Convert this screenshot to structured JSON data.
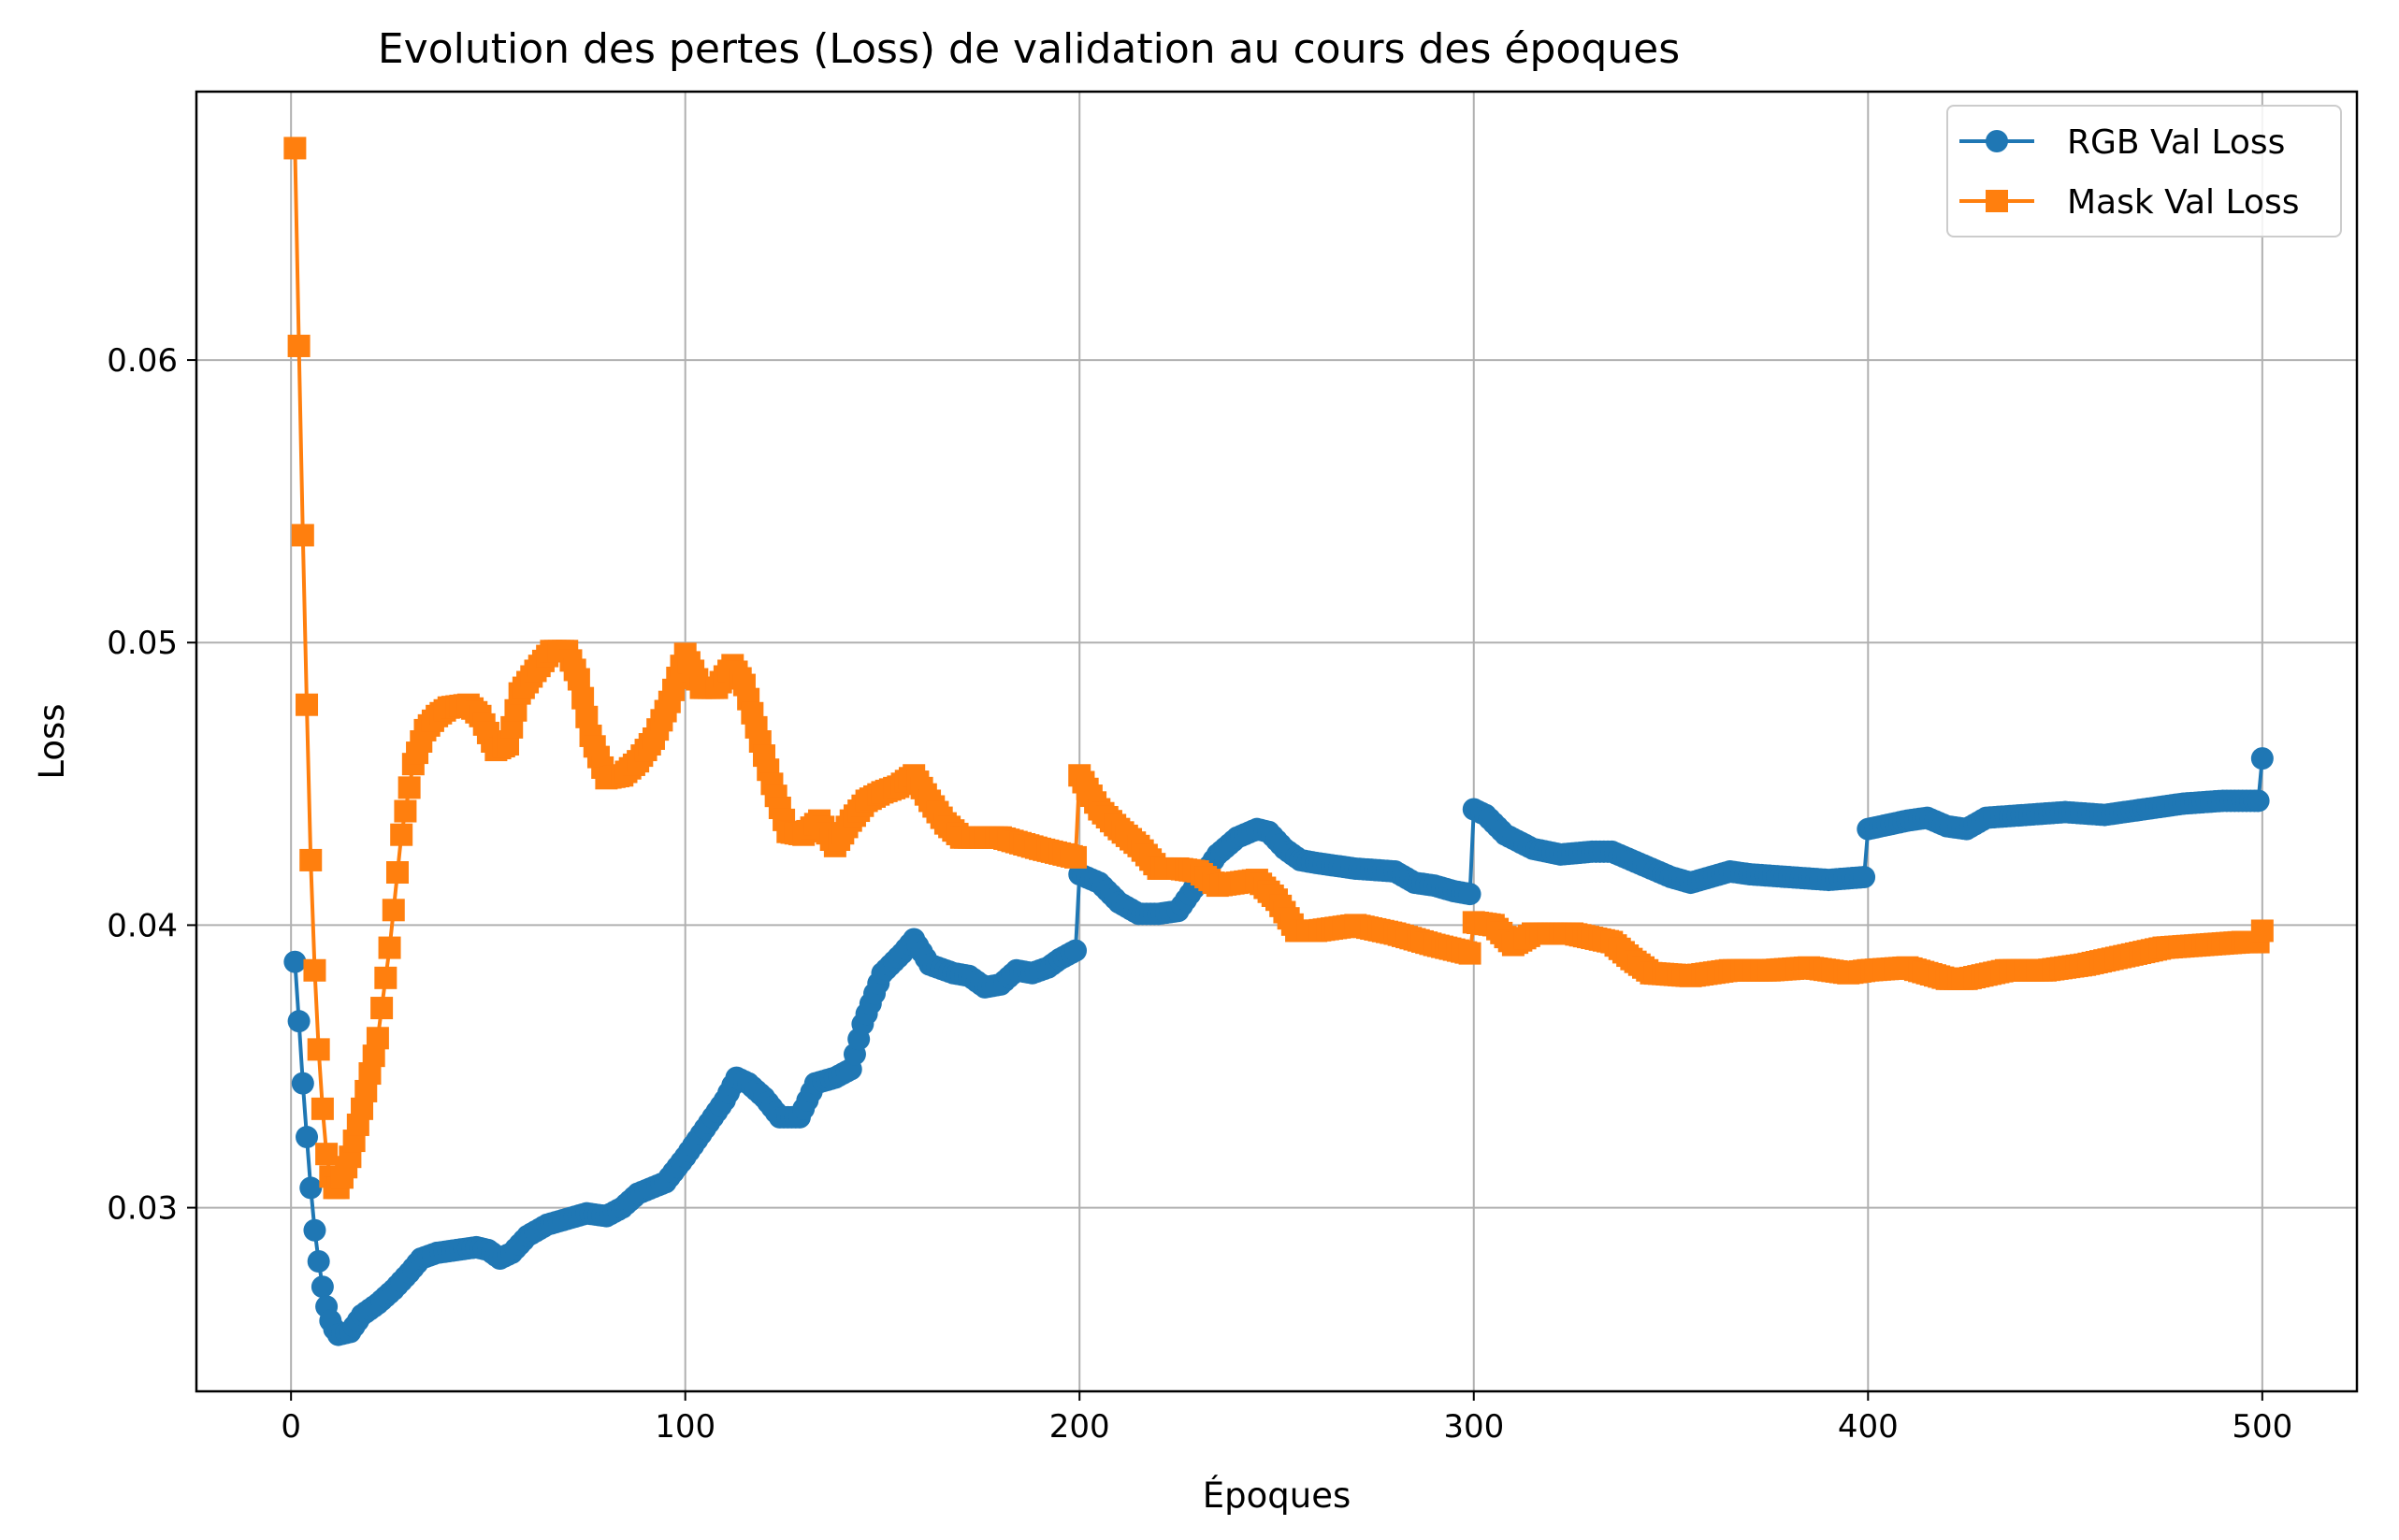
{
  "chart_data": {
    "type": "line",
    "title": "Evolution des pertes (Loss) de validation au cours des époques",
    "xlabel": "Époques",
    "ylabel": "Loss",
    "xlim": [
      -24,
      524
    ],
    "ylim": [
      0.0235,
      0.0695
    ],
    "xticks": [
      0,
      100,
      200,
      300,
      400,
      500
    ],
    "xtick_labels": [
      "0",
      "100",
      "200",
      "300",
      "400",
      "500"
    ],
    "yticks": [
      0.03,
      0.04,
      0.05,
      0.06
    ],
    "ytick_labels": [
      "0.03",
      "0.04",
      "0.05",
      "0.06"
    ],
    "grid": true,
    "legend_position": "top-right",
    "series": [
      {
        "name": "RGB Val Loss",
        "legend_label": "RGB Val Loss",
        "color": "#1f77b4",
        "marker": "circle",
        "keypoints": [
          [
            1,
            0.0387
          ],
          [
            2,
            0.0366
          ],
          [
            3,
            0.0344
          ],
          [
            4,
            0.0325
          ],
          [
            5,
            0.0307
          ],
          [
            6,
            0.0292
          ],
          [
            7,
            0.0281
          ],
          [
            8,
            0.0272
          ],
          [
            9,
            0.0265
          ],
          [
            10,
            0.026
          ],
          [
            11,
            0.0257
          ],
          [
            12,
            0.0255
          ],
          [
            15,
            0.0256
          ],
          [
            18,
            0.0262
          ],
          [
            22,
            0.0266
          ],
          [
            26,
            0.0271
          ],
          [
            30,
            0.0277
          ],
          [
            33,
            0.0282
          ],
          [
            37,
            0.0284
          ],
          [
            42,
            0.0285
          ],
          [
            47,
            0.0286
          ],
          [
            50,
            0.0285
          ],
          [
            53,
            0.0282
          ],
          [
            56,
            0.0284
          ],
          [
            60,
            0.029
          ],
          [
            65,
            0.0294
          ],
          [
            70,
            0.0296
          ],
          [
            75,
            0.0298
          ],
          [
            80,
            0.0297
          ],
          [
            84,
            0.03
          ],
          [
            88,
            0.0305
          ],
          [
            95,
            0.0309
          ],
          [
            100,
            0.0318
          ],
          [
            105,
            0.0328
          ],
          [
            110,
            0.0338
          ],
          [
            113,
            0.0346
          ],
          [
            116,
            0.0344
          ],
          [
            120,
            0.0339
          ],
          [
            124,
            0.0332
          ],
          [
            129,
            0.0332
          ],
          [
            133,
            0.0344
          ],
          [
            138,
            0.0346
          ],
          [
            142,
            0.0349
          ],
          [
            145,
            0.0365
          ],
          [
            150,
            0.0383
          ],
          [
            155,
            0.039
          ],
          [
            158,
            0.0395
          ],
          [
            162,
            0.0386
          ],
          [
            168,
            0.0383
          ],
          [
            172,
            0.0382
          ],
          [
            176,
            0.0378
          ],
          [
            180,
            0.0379
          ],
          [
            184,
            0.0384
          ],
          [
            188,
            0.0383
          ],
          [
            192,
            0.0385
          ],
          [
            195,
            0.0388
          ],
          [
            199,
            0.0391
          ],
          [
            200,
            0.0418
          ],
          [
            205,
            0.0415
          ],
          [
            210,
            0.0408
          ],
          [
            215,
            0.0404
          ],
          [
            220,
            0.0404
          ],
          [
            225,
            0.0405
          ],
          [
            230,
            0.0415
          ],
          [
            235,
            0.0425
          ],
          [
            240,
            0.0431
          ],
          [
            245,
            0.0434
          ],
          [
            248,
            0.0433
          ],
          [
            252,
            0.0427
          ],
          [
            256,
            0.0423
          ],
          [
            260,
            0.0422
          ],
          [
            270,
            0.042
          ],
          [
            280,
            0.0419
          ],
          [
            285,
            0.0415
          ],
          [
            290,
            0.0414
          ],
          [
            295,
            0.0412
          ],
          [
            299,
            0.0411
          ],
          [
            300,
            0.0441
          ],
          [
            303,
            0.0439
          ],
          [
            308,
            0.0432
          ],
          [
            315,
            0.0427
          ],
          [
            322,
            0.0425
          ],
          [
            330,
            0.0426
          ],
          [
            335,
            0.0426
          ],
          [
            340,
            0.0423
          ],
          [
            345,
            0.042
          ],
          [
            350,
            0.0417
          ],
          [
            355,
            0.0415
          ],
          [
            360,
            0.0417
          ],
          [
            365,
            0.0419
          ],
          [
            370,
            0.0418
          ],
          [
            380,
            0.0417
          ],
          [
            390,
            0.0416
          ],
          [
            399,
            0.0417
          ],
          [
            400,
            0.0434
          ],
          [
            410,
            0.0437
          ],
          [
            415,
            0.0438
          ],
          [
            420,
            0.0435
          ],
          [
            425,
            0.0434
          ],
          [
            430,
            0.0438
          ],
          [
            440,
            0.0439
          ],
          [
            450,
            0.044
          ],
          [
            460,
            0.0439
          ],
          [
            470,
            0.0441
          ],
          [
            480,
            0.0443
          ],
          [
            490,
            0.0444
          ],
          [
            499,
            0.0444
          ],
          [
            500,
            0.0459
          ]
        ]
      },
      {
        "name": "Mask Val Loss",
        "legend_label": "Mask Val Loss",
        "color": "#ff7f0e",
        "marker": "square",
        "keypoints": [
          [
            1,
            0.0675
          ],
          [
            2,
            0.0605
          ],
          [
            3,
            0.0538
          ],
          [
            4,
            0.0478
          ],
          [
            5,
            0.0423
          ],
          [
            6,
            0.0384
          ],
          [
            7,
            0.0356
          ],
          [
            8,
            0.0335
          ],
          [
            9,
            0.0319
          ],
          [
            10,
            0.0311
          ],
          [
            11,
            0.0307
          ],
          [
            12,
            0.0307
          ],
          [
            15,
            0.0318
          ],
          [
            18,
            0.0335
          ],
          [
            22,
            0.036
          ],
          [
            25,
            0.0392
          ],
          [
            28,
            0.0432
          ],
          [
            31,
            0.0457
          ],
          [
            34,
            0.0469
          ],
          [
            37,
            0.0474
          ],
          [
            40,
            0.0477
          ],
          [
            45,
            0.0478
          ],
          [
            48,
            0.0474
          ],
          [
            52,
            0.0462
          ],
          [
            55,
            0.0464
          ],
          [
            58,
            0.0482
          ],
          [
            62,
            0.049
          ],
          [
            66,
            0.0497
          ],
          [
            70,
            0.0497
          ],
          [
            73,
            0.0487
          ],
          [
            76,
            0.0467
          ],
          [
            80,
            0.0452
          ],
          [
            84,
            0.0453
          ],
          [
            88,
            0.0458
          ],
          [
            92,
            0.0466
          ],
          [
            96,
            0.0479
          ],
          [
            100,
            0.0496
          ],
          [
            104,
            0.0484
          ],
          [
            108,
            0.0484
          ],
          [
            112,
            0.0492
          ],
          [
            115,
            0.0485
          ],
          [
            118,
            0.047
          ],
          [
            122,
            0.045
          ],
          [
            126,
            0.0433
          ],
          [
            130,
            0.0432
          ],
          [
            134,
            0.0437
          ],
          [
            138,
            0.0428
          ],
          [
            142,
            0.0437
          ],
          [
            146,
            0.0444
          ],
          [
            150,
            0.0447
          ],
          [
            154,
            0.0449
          ],
          [
            158,
            0.0453
          ],
          [
            162,
            0.0444
          ],
          [
            166,
            0.0436
          ],
          [
            170,
            0.0431
          ],
          [
            180,
            0.0431
          ],
          [
            190,
            0.0427
          ],
          [
            199,
            0.0424
          ],
          [
            200,
            0.0453
          ],
          [
            205,
            0.0441
          ],
          [
            210,
            0.0434
          ],
          [
            215,
            0.0428
          ],
          [
            220,
            0.042
          ],
          [
            225,
            0.042
          ],
          [
            230,
            0.0419
          ],
          [
            235,
            0.0414
          ],
          [
            240,
            0.0415
          ],
          [
            245,
            0.0416
          ],
          [
            250,
            0.0409
          ],
          [
            255,
            0.0398
          ],
          [
            260,
            0.0398
          ],
          [
            270,
            0.04
          ],
          [
            280,
            0.0397
          ],
          [
            290,
            0.0393
          ],
          [
            299,
            0.039
          ],
          [
            300,
            0.0401
          ],
          [
            305,
            0.04
          ],
          [
            310,
            0.0393
          ],
          [
            315,
            0.0397
          ],
          [
            325,
            0.0397
          ],
          [
            335,
            0.0394
          ],
          [
            340,
            0.0388
          ],
          [
            345,
            0.0383
          ],
          [
            355,
            0.0382
          ],
          [
            365,
            0.0384
          ],
          [
            375,
            0.0384
          ],
          [
            385,
            0.0385
          ],
          [
            395,
            0.0383
          ],
          [
            400,
            0.0384
          ],
          [
            410,
            0.0385
          ],
          [
            420,
            0.0381
          ],
          [
            425,
            0.0381
          ],
          [
            435,
            0.0384
          ],
          [
            445,
            0.0384
          ],
          [
            455,
            0.0386
          ],
          [
            465,
            0.0389
          ],
          [
            475,
            0.0392
          ],
          [
            485,
            0.0393
          ],
          [
            495,
            0.0394
          ],
          [
            499,
            0.0394
          ],
          [
            500,
            0.0398
          ]
        ]
      }
    ]
  }
}
